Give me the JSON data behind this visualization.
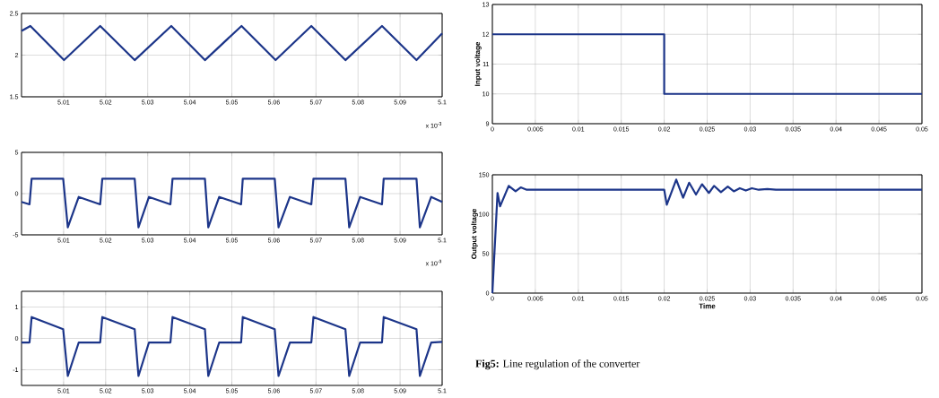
{
  "chart_data": [
    {
      "type": "line",
      "color": "#1c3589",
      "grid": true,
      "xlim": [
        5.0,
        5.1
      ],
      "xticks": [
        5.01,
        5.02,
        5.03,
        5.04,
        5.05,
        5.06,
        5.07,
        5.08,
        5.09,
        5.1
      ],
      "ylim": [
        1.5,
        2.5
      ],
      "yticks": [
        1.5,
        2,
        2.5
      ],
      "x": [
        5.0,
        5.0021,
        5.0101,
        5.0187,
        5.0269,
        5.0356,
        5.0436,
        5.0523,
        5.0604,
        5.0689,
        5.077,
        5.0857,
        5.0939,
        5.1
      ],
      "values": [
        2.29,
        2.35,
        1.94,
        2.35,
        1.94,
        2.35,
        1.94,
        2.35,
        1.94,
        2.35,
        1.94,
        2.35,
        1.94,
        2.26
      ],
      "annotations": [
        "x 10$^{-3}$"
      ]
    },
    {
      "type": "line",
      "color": "#1c3589",
      "grid": true,
      "xlim": [
        5.0,
        5.1
      ],
      "xticks": [
        5.01,
        5.02,
        5.03,
        5.04,
        5.05,
        5.06,
        5.07,
        5.08,
        5.09,
        5.1
      ],
      "ylim": [
        -5,
        5
      ],
      "yticks": [
        -5,
        0,
        5
      ],
      "x": [
        5.0,
        5.0019,
        5.0024,
        5.0099,
        5.011,
        5.0136,
        5.0187,
        5.0192,
        5.0269,
        5.0278,
        5.0303,
        5.0354,
        5.0359,
        5.0436,
        5.0444,
        5.047,
        5.0522,
        5.0526,
        5.0602,
        5.0611,
        5.0638,
        5.0689,
        5.0694,
        5.077,
        5.0779,
        5.0805,
        5.0857,
        5.0861,
        5.0939,
        5.0947,
        5.0974,
        5.1
      ],
      "values": [
        -1.0,
        -1.3,
        1.8,
        1.8,
        -4.1,
        -0.4,
        -1.3,
        1.8,
        1.8,
        -4.1,
        -0.4,
        -1.3,
        1.8,
        1.8,
        -4.1,
        -0.4,
        -1.3,
        1.8,
        1.8,
        -4.1,
        -0.4,
        -1.3,
        1.8,
        1.8,
        -4.1,
        -0.4,
        -1.3,
        1.8,
        1.8,
        -4.1,
        -0.4,
        -1.0
      ],
      "annotations": [
        "x 10$^{-3}$"
      ]
    },
    {
      "type": "line",
      "color": "#1c3589",
      "grid": true,
      "xlim": [
        5.0,
        5.1
      ],
      "xticks": [
        5.01,
        5.02,
        5.03,
        5.04,
        5.05,
        5.06,
        5.07,
        5.08,
        5.09,
        5.1
      ],
      "ylim": [
        -1.5,
        1.5
      ],
      "yticks": [
        -1,
        0,
        1
      ],
      "x": [
        5.0,
        5.0019,
        5.0024,
        5.0099,
        5.011,
        5.0136,
        5.0187,
        5.0192,
        5.0269,
        5.0278,
        5.0303,
        5.0354,
        5.0359,
        5.0436,
        5.0444,
        5.047,
        5.0522,
        5.0526,
        5.0602,
        5.0611,
        5.0638,
        5.0689,
        5.0694,
        5.077,
        5.0779,
        5.0805,
        5.0857,
        5.0861,
        5.0939,
        5.0947,
        5.0974,
        5.1
      ],
      "values": [
        -0.13,
        -0.13,
        0.68,
        0.29,
        -1.2,
        -0.13,
        -0.13,
        0.68,
        0.29,
        -1.2,
        -0.13,
        -0.13,
        0.68,
        0.29,
        -1.2,
        -0.13,
        -0.13,
        0.68,
        0.29,
        -1.2,
        -0.13,
        -0.13,
        0.68,
        0.29,
        -1.2,
        -0.13,
        -0.13,
        0.68,
        0.29,
        -1.2,
        -0.13,
        -0.11
      ]
    },
    {
      "type": "line",
      "color": "#1c3589",
      "grid": true,
      "ylabel": "Input voltage",
      "xlim": [
        0,
        0.05
      ],
      "xticks": [
        0,
        0.005,
        0.01,
        0.015,
        0.02,
        0.025,
        0.03,
        0.035,
        0.04,
        0.045,
        0.05
      ],
      "ylim": [
        9,
        13
      ],
      "yticks": [
        9,
        10,
        11,
        12,
        13
      ],
      "x": [
        0,
        0.02,
        0.02,
        0.05
      ],
      "values": [
        12,
        12,
        10,
        10
      ]
    },
    {
      "type": "line",
      "color": "#1c3589",
      "grid": true,
      "ylabel": "Output voltage",
      "xlabel": "Time",
      "xlim": [
        0,
        0.05
      ],
      "xticks": [
        0,
        0.005,
        0.01,
        0.015,
        0.02,
        0.025,
        0.03,
        0.035,
        0.04,
        0.045,
        0.05
      ],
      "ylim": [
        0,
        150
      ],
      "yticks": [
        0,
        50,
        100,
        150
      ],
      "x": [
        0,
        0.0006,
        0.0009,
        0.0019,
        0.0027,
        0.0033,
        0.004,
        0.02,
        0.0203,
        0.0214,
        0.0222,
        0.0229,
        0.0237,
        0.0244,
        0.0252,
        0.0258,
        0.0266,
        0.0274,
        0.0281,
        0.0288,
        0.0295,
        0.0302,
        0.031,
        0.032,
        0.033,
        0.05
      ],
      "values": [
        0,
        127,
        110,
        136,
        129,
        134,
        131,
        131,
        112,
        144,
        121,
        140,
        125,
        138,
        127,
        136,
        128,
        135,
        129,
        133,
        130,
        133,
        131,
        132,
        131,
        131
      ],
      "annotations": [
        "**Fig5:** Line regulation of the converter"
      ]
    }
  ]
}
